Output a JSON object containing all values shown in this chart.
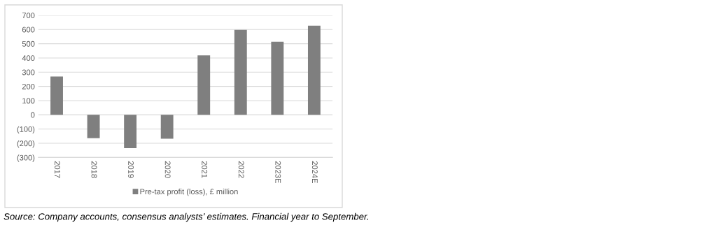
{
  "chart_data": {
    "type": "bar",
    "categories": [
      "2017",
      "2018",
      "2019",
      "2020",
      "2021",
      "2022",
      "2023E",
      "2024E"
    ],
    "series": [
      {
        "name": "Pre-tax profit (loss), £ million",
        "color": "#7f7f7f",
        "values": [
          270,
          -164,
          -234,
          -168,
          418,
          597,
          514,
          627
        ]
      }
    ],
    "ylim": [
      -300,
      700
    ],
    "yticks": [
      {
        "value": -300,
        "label": "(300)"
      },
      {
        "value": -200,
        "label": "(200)"
      },
      {
        "value": -100,
        "label": "(100)"
      },
      0,
      100,
      200,
      300,
      400,
      500,
      600,
      700
    ],
    "grid": "y",
    "legend": "bottom",
    "annotations": [
      "Source: Company accounts, consensus analysts’ estimates. Financial year to September."
    ]
  }
}
